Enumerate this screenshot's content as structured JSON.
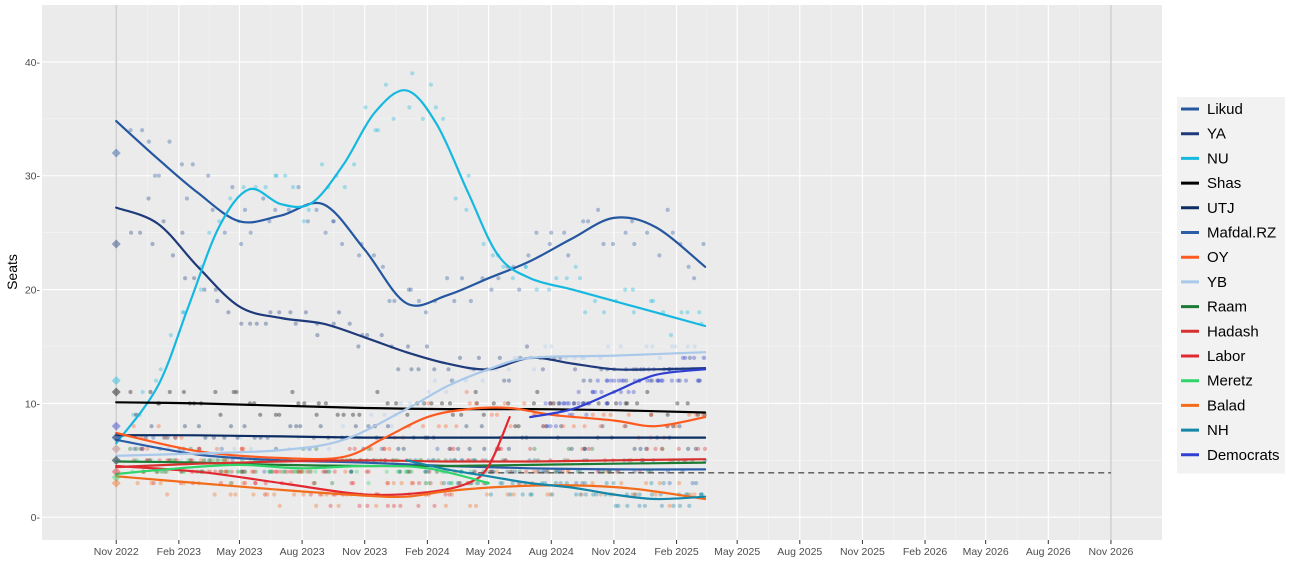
{
  "chart_data": {
    "type": "scatter",
    "ylabel": "Seats",
    "xlabel": "",
    "ylim": [
      -2,
      45
    ],
    "xlim": [
      "2022-07-15",
      "2027-01-15"
    ],
    "grid": true,
    "legend_position": "right",
    "x_ticks": [
      "2022-11-01",
      "2023-02-01",
      "2023-05-01",
      "2023-08-01",
      "2023-11-01",
      "2024-02-01",
      "2024-05-01",
      "2024-08-01",
      "2024-11-01",
      "2025-02-01",
      "2025-05-01",
      "2025-08-01",
      "2025-11-01",
      "2026-02-01",
      "2026-05-01",
      "2026-08-01",
      "2026-11-01"
    ],
    "x_tick_labels": [
      "Nov 2022",
      "Feb 2023",
      "May 2023",
      "Aug 2023",
      "Nov 2023",
      "Feb 2024",
      "May 2024",
      "Aug 2024",
      "Nov 2024",
      "Feb 2025",
      "May 2025",
      "Aug 2025",
      "Nov 2025",
      "Feb 2026",
      "May 2026",
      "Aug 2026",
      "Nov 2026"
    ],
    "y_ticks": [
      0,
      10,
      20,
      30,
      40
    ],
    "y_tick_labels": [
      "0-",
      "10-",
      "20-",
      "30-",
      "40-"
    ],
    "vertical_lines": [
      "2022-11-01",
      "2026-11-01"
    ],
    "threshold": {
      "value": 3.9,
      "from": "2024-04-01",
      "to": "2026-11-01"
    },
    "series": [
      {
        "name": "Likud",
        "color": "#2557a0",
        "election": 32,
        "x": [
          "2022-11-01",
          "2023-01-01",
          "2023-03-01",
          "2023-05-01",
          "2023-07-01",
          "2023-09-01",
          "2023-11-01",
          "2024-01-01",
          "2024-03-01",
          "2024-05-01",
          "2024-07-01",
          "2024-09-01",
          "2024-11-01",
          "2025-01-01",
          "2025-03-15"
        ],
        "y": [
          34.8,
          31.5,
          28.5,
          26.0,
          26.5,
          27.5,
          23.5,
          18.8,
          19.5,
          21.0,
          22.5,
          24.5,
          26.3,
          25.5,
          22.0
        ]
      },
      {
        "name": "YA",
        "color": "#1e3a7a",
        "election": 24,
        "x": [
          "2022-11-01",
          "2023-01-01",
          "2023-03-01",
          "2023-05-01",
          "2023-07-01",
          "2023-09-01",
          "2023-11-01",
          "2024-01-01",
          "2024-03-01",
          "2024-05-01",
          "2024-07-01",
          "2024-09-01",
          "2024-11-01",
          "2025-01-01",
          "2025-03-15"
        ],
        "y": [
          27.2,
          25.8,
          22.0,
          18.5,
          17.5,
          17.0,
          15.8,
          14.5,
          13.5,
          13.0,
          14.0,
          13.5,
          13.0,
          13.0,
          13.1
        ]
      },
      {
        "name": "NU",
        "color": "#16b8e0",
        "election": 12,
        "x": [
          "2022-11-01",
          "2023-01-01",
          "2023-02-15",
          "2023-04-01",
          "2023-05-15",
          "2023-07-01",
          "2023-08-15",
          "2023-10-01",
          "2023-11-15",
          "2024-01-01",
          "2024-02-15",
          "2024-04-01",
          "2024-05-15",
          "2024-07-01",
          "2024-09-01",
          "2024-11-01",
          "2025-01-01",
          "2025-03-15"
        ],
        "y": [
          6.5,
          11.5,
          18.5,
          25.5,
          28.8,
          27.5,
          27.6,
          31.0,
          35.5,
          37.5,
          34.5,
          28.5,
          23.0,
          21.0,
          20.0,
          19.0,
          18.0,
          16.8
        ]
      },
      {
        "name": "Shas",
        "color": "#000000",
        "election": 11,
        "x": [
          "2022-11-01",
          "2023-03-01",
          "2023-07-01",
          "2023-11-01",
          "2024-03-01",
          "2024-07-01",
          "2024-11-01",
          "2025-03-15"
        ],
        "y": [
          10.1,
          10.0,
          9.8,
          9.6,
          9.5,
          9.5,
          9.4,
          9.2
        ]
      },
      {
        "name": "UTJ",
        "color": "#0b2d63",
        "election": 7,
        "x": [
          "2022-11-01",
          "2023-03-01",
          "2023-07-01",
          "2023-11-01",
          "2024-03-01",
          "2024-07-01",
          "2024-11-01",
          "2025-03-15"
        ],
        "y": [
          7.2,
          7.2,
          7.1,
          7.0,
          7.0,
          7.0,
          7.0,
          7.0
        ]
      },
      {
        "name": "Mafdal.RZ",
        "color": "#2c5ea8",
        "election": 7,
        "x": [
          "2022-11-01",
          "2023-03-01",
          "2023-07-01",
          "2023-11-01",
          "2024-03-01",
          "2024-07-01",
          "2024-11-01",
          "2025-03-15"
        ],
        "y": [
          6.8,
          5.5,
          5.0,
          4.8,
          4.5,
          4.3,
          4.2,
          4.2
        ]
      },
      {
        "name": "OY",
        "color": "#ff5a1f",
        "election": 6,
        "x": [
          "2022-11-01",
          "2023-03-01",
          "2023-07-01",
          "2023-10-01",
          "2023-12-01",
          "2024-02-01",
          "2024-04-01",
          "2024-06-01",
          "2024-08-01",
          "2024-11-01",
          "2025-01-01",
          "2025-03-15"
        ],
        "y": [
          7.4,
          5.8,
          5.2,
          5.3,
          7.0,
          8.8,
          9.5,
          9.6,
          9.0,
          8.5,
          8.0,
          8.8
        ]
      },
      {
        "name": "YB",
        "color": "#a9c8ea",
        "election": 6,
        "x": [
          "2022-11-01",
          "2023-03-01",
          "2023-07-01",
          "2023-10-01",
          "2024-01-01",
          "2024-03-01",
          "2024-05-01",
          "2024-07-01",
          "2024-11-01",
          "2025-03-15"
        ],
        "y": [
          5.4,
          5.6,
          5.9,
          6.8,
          9.5,
          11.5,
          13.0,
          14.0,
          14.2,
          14.5
        ]
      },
      {
        "name": "Raam",
        "color": "#1b7a34",
        "election": 5,
        "x": [
          "2022-11-01",
          "2023-03-01",
          "2023-07-01",
          "2023-11-01",
          "2024-03-01",
          "2024-07-01",
          "2024-11-01",
          "2025-03-15"
        ],
        "y": [
          4.9,
          4.8,
          4.6,
          4.5,
          4.5,
          4.6,
          4.7,
          4.8
        ]
      },
      {
        "name": "Hadash",
        "color": "#d6312e",
        "election": 5,
        "x": [
          "2022-11-01",
          "2023-03-01",
          "2023-07-01",
          "2023-11-01",
          "2024-03-01",
          "2024-07-01",
          "2024-11-01",
          "2025-03-15"
        ],
        "y": [
          4.4,
          4.7,
          4.9,
          5.0,
          4.9,
          4.9,
          5.0,
          5.1
        ]
      },
      {
        "name": "Labor",
        "color": "#e22932",
        "election": 4,
        "x": [
          "2022-11-01",
          "2023-03-01",
          "2023-07-01",
          "2023-11-01",
          "2024-02-01",
          "2024-04-01",
          "2024-05-01",
          "2024-06-01"
        ],
        "y": [
          4.5,
          4.0,
          3.0,
          2.0,
          2.2,
          3.0,
          4.5,
          8.8
        ]
      },
      {
        "name": "Meretz",
        "color": "#2fd46b",
        "election": 3.5,
        "x": [
          "2022-11-01",
          "2023-02-01",
          "2023-05-01",
          "2023-08-01",
          "2023-11-01",
          "2024-02-01",
          "2024-05-01"
        ],
        "y": [
          3.8,
          4.3,
          4.6,
          4.3,
          4.5,
          4.3,
          3.0
        ]
      },
      {
        "name": "Balad",
        "color": "#f26c1c",
        "election": 3,
        "x": [
          "2022-11-01",
          "2023-03-01",
          "2023-07-01",
          "2023-11-01",
          "2024-01-01",
          "2024-03-01",
          "2024-06-01",
          "2024-09-01",
          "2024-12-01",
          "2025-03-15"
        ],
        "y": [
          3.6,
          3.0,
          2.4,
          1.9,
          1.8,
          2.3,
          2.7,
          2.8,
          2.5,
          1.6
        ]
      },
      {
        "name": "NH",
        "color": "#1486a8",
        "election": 5,
        "x": [
          "2024-01-01",
          "2024-03-01",
          "2024-05-01",
          "2024-07-01",
          "2024-09-01",
          "2024-11-01",
          "2025-01-01",
          "2025-03-15"
        ],
        "y": [
          5.0,
          4.2,
          3.6,
          3.0,
          2.6,
          2.0,
          1.6,
          1.8
        ]
      },
      {
        "name": "Democrats",
        "color": "#2f3fd1",
        "election": 8,
        "x": [
          "2024-07-01",
          "2024-09-01",
          "2024-11-01",
          "2025-01-01",
          "2025-03-15"
        ],
        "y": [
          8.8,
          9.5,
          11.0,
          12.5,
          13.0
        ]
      }
    ]
  }
}
